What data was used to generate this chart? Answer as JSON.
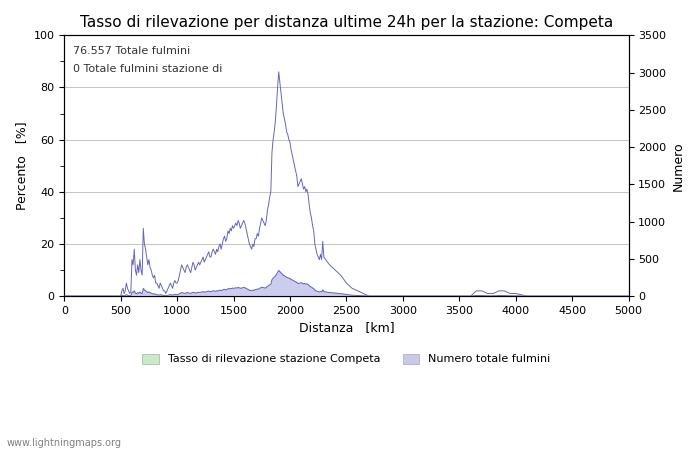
{
  "title": "Tasso di rilevazione per distanza ultime 24h per la stazione: Competa",
  "xlabel": "Distanza   [km]",
  "ylabel_left": "Percento   [%]",
  "ylabel_right": "Numero",
  "annotation_line1": "76.557 Totale fulmini",
  "annotation_line2": "0 Totale fulmini stazione di",
  "legend_label1": "Tasso di rilevazione stazione Competa",
  "legend_label2": "Numero totale fulmini",
  "legend_color1": "#c8eac8",
  "legend_color2": "#c8c8e8",
  "watermark": "www.lightningmaps.org",
  "xlim": [
    0,
    5000
  ],
  "ylim_left": [
    0,
    100
  ],
  "ylim_right": [
    0,
    3500
  ],
  "xticks": [
    0,
    500,
    1000,
    1500,
    2000,
    2500,
    3000,
    3500,
    4000,
    4500,
    5000
  ],
  "yticks_left": [
    0,
    20,
    40,
    60,
    80,
    100
  ],
  "yticks_right": [
    0,
    500,
    1000,
    1500,
    2000,
    2500,
    3000,
    3500
  ],
  "line_color": "#6666bb",
  "fill_color_blue": "#ccccee",
  "fill_color_green": "#c8eac8",
  "background_color": "#ffffff",
  "grid_color": "#aaaaaa",
  "title_fontsize": 11,
  "axis_fontsize": 9,
  "tick_fontsize": 8,
  "distances": [
    0,
    25,
    50,
    75,
    100,
    125,
    150,
    175,
    200,
    225,
    250,
    275,
    300,
    325,
    350,
    375,
    400,
    425,
    450,
    475,
    500,
    510,
    520,
    530,
    540,
    550,
    560,
    570,
    580,
    590,
    600,
    610,
    620,
    630,
    640,
    650,
    660,
    670,
    680,
    690,
    700,
    710,
    720,
    730,
    740,
    750,
    760,
    770,
    780,
    790,
    800,
    810,
    820,
    830,
    840,
    850,
    860,
    870,
    880,
    890,
    900,
    910,
    920,
    930,
    940,
    950,
    960,
    970,
    980,
    990,
    1000,
    1010,
    1020,
    1030,
    1040,
    1050,
    1060,
    1070,
    1080,
    1090,
    1100,
    1110,
    1120,
    1130,
    1140,
    1150,
    1160,
    1170,
    1180,
    1190,
    1200,
    1210,
    1220,
    1230,
    1240,
    1250,
    1260,
    1270,
    1280,
    1290,
    1300,
    1310,
    1320,
    1330,
    1340,
    1350,
    1360,
    1370,
    1380,
    1390,
    1400,
    1410,
    1420,
    1430,
    1440,
    1450,
    1460,
    1470,
    1480,
    1490,
    1500,
    1510,
    1520,
    1530,
    1540,
    1550,
    1560,
    1570,
    1580,
    1590,
    1600,
    1610,
    1620,
    1630,
    1640,
    1650,
    1660,
    1670,
    1680,
    1690,
    1700,
    1710,
    1720,
    1730,
    1740,
    1750,
    1760,
    1770,
    1780,
    1790,
    1800,
    1810,
    1820,
    1830,
    1840,
    1850,
    1860,
    1870,
    1880,
    1890,
    1900,
    1910,
    1920,
    1930,
    1940,
    1950,
    1960,
    1970,
    1980,
    1990,
    2000,
    2010,
    2020,
    2030,
    2040,
    2050,
    2060,
    2070,
    2080,
    2090,
    2100,
    2110,
    2120,
    2130,
    2140,
    2150,
    2160,
    2170,
    2180,
    2190,
    2200,
    2210,
    2220,
    2230,
    2240,
    2250,
    2260,
    2270,
    2280,
    2290,
    2300,
    2350,
    2400,
    2450,
    2500,
    2550,
    2600,
    2650,
    2700,
    2750,
    2800,
    2850,
    2900,
    2950,
    3000,
    3100,
    3200,
    3300,
    3400,
    3500,
    3600,
    3650,
    3700,
    3750,
    3800,
    3850,
    3900,
    3950,
    4000,
    4100,
    4200,
    4300,
    4400,
    4500,
    4600,
    4700,
    4800,
    4900,
    5000
  ],
  "percento": [
    0,
    0,
    0,
    0,
    0,
    0,
    0,
    0,
    0,
    0,
    0,
    0,
    0,
    0,
    0,
    0,
    0,
    0,
    0,
    0,
    0,
    2,
    3,
    1,
    2,
    5,
    3,
    2,
    1,
    2,
    14,
    12,
    18,
    10,
    8,
    12,
    9,
    14,
    10,
    8,
    26,
    20,
    18,
    15,
    12,
    14,
    11,
    10,
    8,
    7,
    8,
    5,
    5,
    4,
    3,
    5,
    4,
    3,
    2,
    2,
    1,
    2,
    3,
    4,
    5,
    4,
    3,
    5,
    6,
    5,
    5,
    6,
    8,
    10,
    12,
    11,
    10,
    9,
    11,
    12,
    11,
    10,
    9,
    11,
    13,
    12,
    10,
    11,
    12,
    13,
    12,
    13,
    14,
    15,
    13,
    14,
    15,
    16,
    17,
    15,
    15,
    17,
    18,
    17,
    16,
    18,
    17,
    19,
    20,
    18,
    20,
    22,
    23,
    21,
    22,
    25,
    24,
    26,
    25,
    27,
    26,
    27,
    28,
    27,
    29,
    28,
    26,
    27,
    28,
    29,
    28,
    26,
    24,
    22,
    20,
    19,
    18,
    20,
    19,
    22,
    22,
    24,
    23,
    26,
    28,
    30,
    29,
    28,
    27,
    29,
    33,
    35,
    38,
    40,
    55,
    60,
    63,
    67,
    73,
    80,
    86,
    82,
    78,
    74,
    70,
    68,
    66,
    63,
    62,
    60,
    59,
    56,
    54,
    52,
    50,
    48,
    46,
    42,
    43,
    44,
    45,
    43,
    41,
    42,
    40,
    41,
    39,
    35,
    32,
    30,
    27,
    25,
    20,
    18,
    16,
    15,
    14,
    16,
    14,
    21,
    15,
    12,
    10,
    8,
    5,
    3,
    2,
    1,
    0,
    0,
    0,
    0,
    0,
    0,
    0,
    0,
    0,
    0,
    0,
    0,
    0,
    2,
    2,
    1,
    1,
    2,
    2,
    1,
    1,
    0,
    0,
    0,
    0,
    0,
    0,
    0,
    0,
    0,
    0
  ],
  "numero": [
    0,
    0,
    0,
    0,
    0,
    0,
    0,
    0,
    0,
    0,
    0,
    0,
    0,
    0,
    0,
    0,
    0,
    0,
    0,
    0,
    0,
    8,
    12,
    4,
    8,
    20,
    12,
    8,
    4,
    8,
    56,
    48,
    72,
    40,
    32,
    48,
    36,
    56,
    40,
    32,
    104,
    80,
    72,
    60,
    48,
    56,
    44,
    40,
    32,
    28,
    32,
    20,
    20,
    16,
    12,
    20,
    16,
    12,
    8,
    8,
    4,
    8,
    12,
    16,
    20,
    16,
    12,
    20,
    24,
    20,
    20,
    24,
    32,
    40,
    48,
    44,
    40,
    36,
    44,
    48,
    44,
    40,
    36,
    44,
    52,
    48,
    40,
    44,
    48,
    52,
    48,
    52,
    56,
    60,
    52,
    56,
    60,
    64,
    68,
    60,
    60,
    68,
    72,
    68,
    64,
    72,
    68,
    76,
    80,
    72,
    80,
    88,
    92,
    84,
    88,
    100,
    96,
    104,
    100,
    108,
    104,
    108,
    112,
    108,
    116,
    112,
    104,
    108,
    112,
    116,
    112,
    104,
    96,
    88,
    80,
    76,
    72,
    80,
    76,
    88,
    88,
    96,
    92,
    104,
    112,
    120,
    116,
    112,
    108,
    116,
    132,
    140,
    152,
    160,
    220,
    240,
    252,
    268,
    292,
    320,
    344,
    328,
    312,
    296,
    280,
    272,
    264,
    252,
    248,
    240,
    236,
    224,
    216,
    208,
    200,
    192,
    184,
    168,
    172,
    176,
    180,
    172,
    164,
    168,
    160,
    164,
    156,
    140,
    128,
    120,
    108,
    100,
    80,
    72,
    64,
    60,
    56,
    64,
    56,
    84,
    60,
    48,
    41,
    33,
    21,
    12,
    8,
    4,
    0,
    0,
    0,
    0,
    0,
    0,
    0,
    0,
    0,
    0,
    0,
    0,
    0,
    8,
    8,
    4,
    4,
    8,
    8,
    4,
    4,
    0,
    0,
    0,
    0,
    0,
    0,
    0,
    0,
    0,
    0
  ]
}
